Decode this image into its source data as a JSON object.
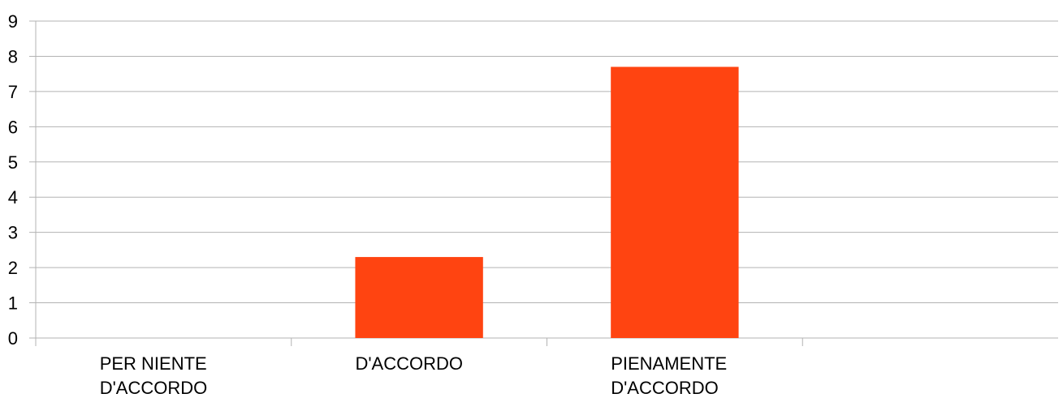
{
  "chart_data": {
    "type": "bar",
    "title": "",
    "xlabel": "",
    "ylabel": "",
    "categories": [
      [
        "PER NIENTE",
        "D'ACCORDO"
      ],
      [
        "D'ACCORDO"
      ],
      [
        "PIENAMENTE",
        "D'ACCORDO"
      ],
      [
        ""
      ]
    ],
    "values": [
      0,
      2.3,
      7.7,
      0
    ],
    "ylim": [
      0,
      9
    ],
    "yticks": [
      "0",
      "1",
      "2",
      "3",
      "4",
      "5",
      "6",
      "7",
      "8",
      "9"
    ],
    "grid": true,
    "legend": "none",
    "bar_color": "#ff4411",
    "grid_color": "#b3b3b3"
  }
}
